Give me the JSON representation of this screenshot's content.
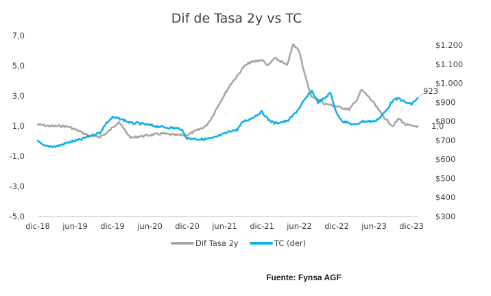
{
  "source": "Fuente: Fynsa AGF",
  "chart_data": {
    "type": "line",
    "title": "Dif de Tasa 2y vs TC",
    "x_ticks": [
      "dic-18",
      "jun-19",
      "dic-19",
      "jun-20",
      "dic-20",
      "jun-21",
      "dic-21",
      "jun-22",
      "dic-22",
      "jun-23",
      "dic-23"
    ],
    "y_left": {
      "ticks": [
        "7,0",
        "5,0",
        "3,0",
        "1,0",
        "-1,0",
        "-3,0",
        "-5,0"
      ],
      "range": [
        -5,
        7
      ]
    },
    "y_right": {
      "ticks": [
        "$1.200",
        "$1.100",
        "$1.000",
        "$900",
        "$800",
        "$700",
        "$600",
        "$500",
        "$400",
        "$300"
      ],
      "range": [
        300,
        1200
      ]
    },
    "x_range_months": [
      0,
      60
    ],
    "legend_position": "bottom",
    "series": [
      {
        "name": "Dif Tasa 2y",
        "axis": "left",
        "color": "#a6a6a6",
        "x": [
          "Dec-18",
          "Feb-19",
          "Apr-19",
          "May-19",
          "Jul-19",
          "Aug-19",
          "Sep-19",
          "Oct-19",
          "Nov-19",
          "Dec-19",
          "Jan-20",
          "Feb-20",
          "Mar-20",
          "Apr-20",
          "Jun-20",
          "Aug-20",
          "Oct-20",
          "Dec-20",
          "Jan-21",
          "Mar-21",
          "Apr-21",
          "May-21",
          "Jun-21",
          "Jul-21",
          "Aug-21",
          "Sep-21",
          "Oct-21",
          "Nov-21",
          "Dec-21",
          "Jan-22",
          "Feb-22",
          "Mar-22",
          "Apr-22",
          "May-22",
          "Jun-22",
          "Jul-22",
          "Aug-22",
          "Sep-22",
          "Oct-22",
          "Nov-22",
          "Dec-22",
          "Jan-23",
          "Feb-23",
          "Mar-23",
          "Apr-23",
          "May-23",
          "Jun-23",
          "Jul-23",
          "Aug-23",
          "Sep-23",
          "Oct-23",
          "Nov-23",
          "Dec-23",
          "Jan-24"
        ],
        "values": [
          1.1,
          1.0,
          1.0,
          0.95,
          0.6,
          0.4,
          0.3,
          0.3,
          0.5,
          0.9,
          1.3,
          0.7,
          0.2,
          0.3,
          0.4,
          0.5,
          0.4,
          0.4,
          0.6,
          1.0,
          1.6,
          2.4,
          3.1,
          3.8,
          4.3,
          4.9,
          5.2,
          5.3,
          5.4,
          5.0,
          5.5,
          5.3,
          5.0,
          6.4,
          6.0,
          4.2,
          2.9,
          2.8,
          2.5,
          2.4,
          2.3,
          2.2,
          2.1,
          2.6,
          3.4,
          3.0,
          2.5,
          1.9,
          1.4,
          1.0,
          1.5,
          1.1,
          1.0,
          1.0
        ]
      },
      {
        "name": "TC (der)",
        "axis": "right",
        "color": "#0fb0e8",
        "end_label": "923",
        "x": [
          "Dec-18",
          "Jan-19",
          "Mar-19",
          "May-19",
          "Jul-19",
          "Aug-19",
          "Sep-19",
          "Oct-19",
          "Nov-19",
          "Dec-19",
          "Jan-20",
          "Feb-20",
          "Mar-20",
          "Apr-20",
          "May-20",
          "Jun-20",
          "Aug-20",
          "Oct-20",
          "Nov-20",
          "Dec-20",
          "Jan-21",
          "Feb-21",
          "Apr-21",
          "Jun-21",
          "Jul-21",
          "Aug-21",
          "Sep-21",
          "Oct-21",
          "Nov-21",
          "Dec-21",
          "Jan-22",
          "Feb-22",
          "Apr-22",
          "May-22",
          "Jun-22",
          "Jul-22",
          "Aug-22",
          "Sep-22",
          "Oct-22",
          "Nov-22",
          "Dec-22",
          "Jan-23",
          "Feb-23",
          "Mar-23",
          "Apr-23",
          "May-23",
          "Jun-23",
          "Jul-23",
          "Aug-23",
          "Sep-23",
          "Oct-23",
          "Nov-23",
          "Dec-23",
          "Jan-24"
        ],
        "values": [
          695,
          670,
          668,
          690,
          705,
          720,
          730,
          740,
          790,
          820,
          815,
          805,
          790,
          790,
          785,
          780,
          770,
          765,
          760,
          710,
          710,
          705,
          710,
          735,
          750,
          755,
          800,
          810,
          830,
          850,
          810,
          790,
          800,
          830,
          870,
          920,
          960,
          900,
          920,
          950,
          840,
          800,
          790,
          780,
          800,
          800,
          800,
          820,
          860,
          910,
          920,
          900,
          890,
          923
        ]
      }
    ],
    "annotations": [
      {
        "text": "923",
        "series": "TC (der)"
      },
      {
        "text": "1,0",
        "series": "Dif Tasa 2y"
      }
    ]
  }
}
